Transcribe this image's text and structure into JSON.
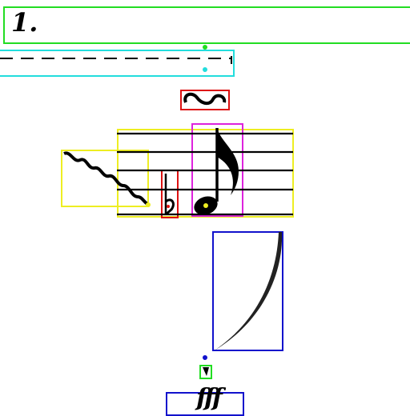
{
  "score": {
    "fingering_text": "1.",
    "dynamic_text": "fff"
  },
  "colors": {
    "notation": "#000000",
    "fingering_box": "#22dd22",
    "hairline_box": "#22dddd",
    "turn_box": "#dd1111",
    "staff_box": "#eeee22",
    "trill_box": "#eeee22",
    "flat_box": "#dd1111",
    "note_box": "#dd22dd",
    "slur_box": "#1111cc",
    "small_box": "#22dd22",
    "dynamic_box": "#1111cc"
  },
  "icons": [
    "turn-ornament-icon",
    "trill-wavy-line-icon",
    "flat-accidental-icon",
    "eighth-note-icon",
    "slur-curve-icon",
    "small-accidental-icon"
  ]
}
